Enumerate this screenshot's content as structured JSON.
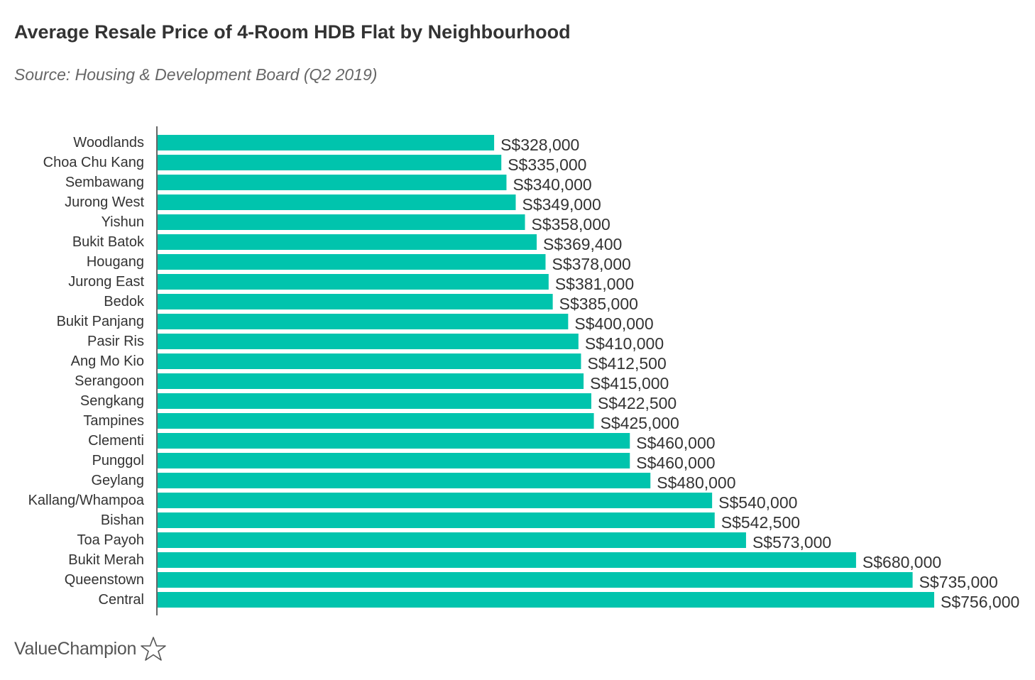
{
  "title": "Average Resale Price of 4-Room HDB Flat by Neighbourhood",
  "subtitle": "Source: Housing & Development Board (Q2 2019)",
  "brand": {
    "name": "ValueChampion",
    "icon": "star-outline-icon"
  },
  "colors": {
    "bar": "#00c4ad",
    "axis": "#333333",
    "text": "#333333"
  },
  "chart_data": {
    "type": "bar",
    "orientation": "horizontal",
    "title": "Average Resale Price of 4-Room HDB Flat by Neighbourhood",
    "subtitle": "Source: Housing & Development Board (Q2 2019)",
    "xlabel": "",
    "ylabel": "",
    "grid": false,
    "legend": "none",
    "xlim": [
      0,
      756000
    ],
    "categories": [
      "Woodlands",
      "Choa Chu Kang",
      "Sembawang",
      "Jurong West",
      "Yishun",
      "Bukit Batok",
      "Hougang",
      "Jurong East",
      "Bedok",
      "Bukit Panjang",
      "Pasir Ris",
      "Ang Mo Kio",
      "Serangoon",
      "Sengkang",
      "Tampines",
      "Clementi",
      "Punggol",
      "Geylang",
      "Kallang/Whampoa",
      "Bishan",
      "Toa Payoh",
      "Bukit Merah",
      "Queenstown",
      "Central"
    ],
    "values": [
      328000,
      335000,
      340000,
      349000,
      358000,
      369400,
      378000,
      381000,
      385000,
      400000,
      410000,
      412500,
      415000,
      422500,
      425000,
      460000,
      460000,
      480000,
      540000,
      542500,
      573000,
      680000,
      735000,
      756000
    ],
    "data_labels": [
      "S$328,000",
      "S$335,000",
      "S$340,000",
      "S$349,000",
      "S$358,000",
      "S$369,400",
      "S$378,000",
      "S$381,000",
      "S$385,000",
      "S$400,000",
      "S$410,000",
      "S$412,500",
      "S$415,000",
      "S$422,500",
      "S$425,000",
      "S$460,000",
      "S$460,000",
      "S$480,000",
      "S$540,000",
      "S$542,500",
      "S$573,000",
      "S$680,000",
      "S$735,000",
      "S$756,000"
    ]
  }
}
